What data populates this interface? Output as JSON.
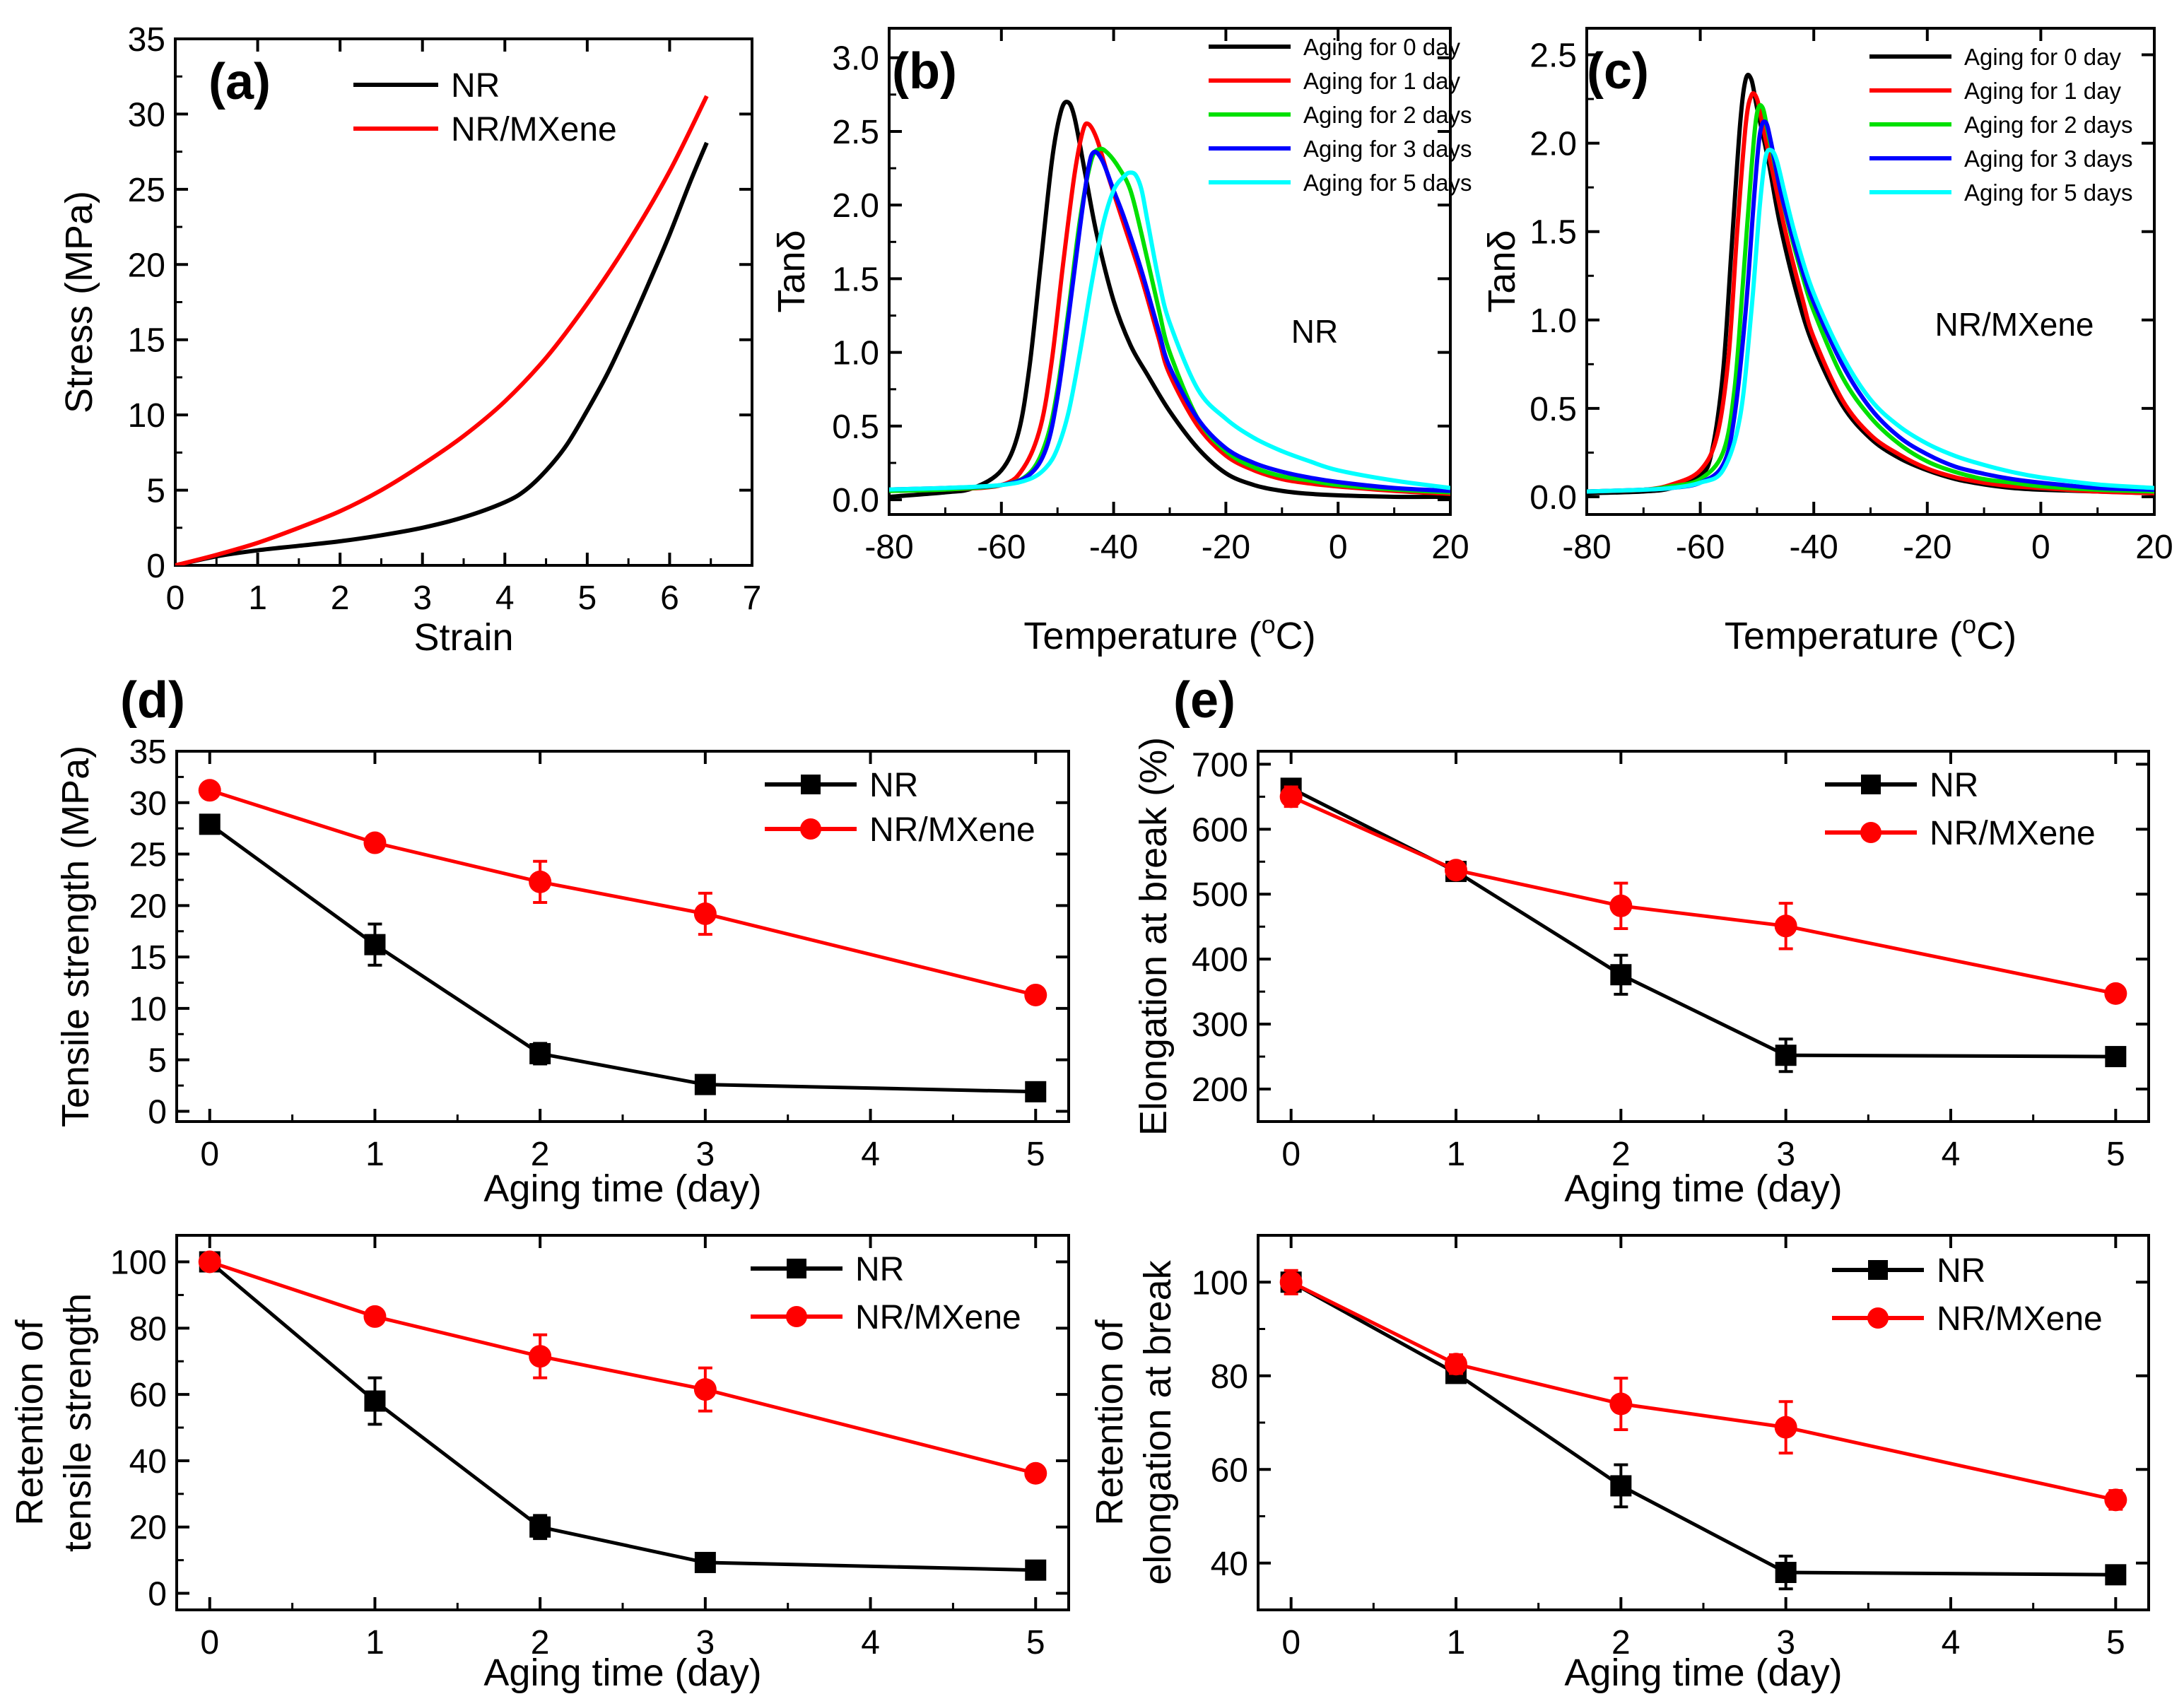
{
  "colors": {
    "black": "#000000",
    "red": "#ff0000",
    "green": "#00e000",
    "blue": "#0000ff",
    "cyan": "#00ffff"
  },
  "chart_data": [
    {
      "id": "a",
      "type": "line",
      "panel_label": "(a)",
      "xlabel": "Strain",
      "ylabel": "Stress (MPa)",
      "xlim": [
        0,
        7
      ],
      "ylim": [
        0,
        35
      ],
      "xticks": [
        0,
        1,
        2,
        3,
        4,
        5,
        6,
        7
      ],
      "yticks": [
        0,
        5,
        10,
        15,
        20,
        25,
        30,
        35
      ],
      "legend_position": "top-right",
      "series": [
        {
          "name": "NR",
          "color": "#000000",
          "x": [
            0,
            0.5,
            1,
            1.5,
            2,
            2.5,
            3,
            3.5,
            4,
            4.25,
            4.5,
            4.75,
            5,
            5.25,
            5.5,
            5.75,
            6,
            6.25,
            6.45
          ],
          "y": [
            0,
            0.6,
            1.0,
            1.3,
            1.6,
            2.0,
            2.5,
            3.2,
            4.2,
            5.0,
            6.3,
            8.0,
            10.3,
            12.8,
            15.7,
            18.8,
            22.0,
            25.5,
            28.1
          ]
        },
        {
          "name": "NR/MXene",
          "color": "#ff0000",
          "x": [
            0,
            0.5,
            1,
            1.5,
            2,
            2.5,
            3,
            3.5,
            4,
            4.5,
            5,
            5.5,
            6,
            6.45
          ],
          "y": [
            0,
            0.7,
            1.5,
            2.5,
            3.6,
            5.0,
            6.7,
            8.6,
            10.9,
            13.8,
            17.4,
            21.5,
            26.2,
            31.2
          ]
        }
      ]
    },
    {
      "id": "b",
      "type": "line",
      "panel_label": "(b)",
      "annotation": "NR",
      "xlabel": "Temperature (°C)",
      "xlabel_parts": {
        "pre": "Temperature (",
        "sup": "o",
        "post": "C)"
      },
      "ylabel": "Tanδ",
      "xlim": [
        -80,
        20
      ],
      "ylim": [
        -0.1,
        3.2
      ],
      "xticks": [
        -80,
        -60,
        -40,
        -20,
        0,
        20
      ],
      "yticks": [
        0.0,
        0.5,
        1.0,
        1.5,
        2.0,
        2.5,
        3.0
      ],
      "legend_position": "top-right",
      "series": [
        {
          "name": "Aging for 0 day",
          "color": "#000000",
          "x": [
            -80,
            -70,
            -65,
            -60,
            -57,
            -55,
            -53,
            -51,
            -49.5,
            -48.3,
            -47,
            -45,
            -43,
            -40,
            -37,
            -34,
            -30,
            -25,
            -20,
            -15,
            -10,
            -5,
            0,
            10,
            20
          ],
          "y": [
            0.02,
            0.05,
            0.08,
            0.2,
            0.45,
            0.9,
            1.6,
            2.3,
            2.62,
            2.7,
            2.6,
            2.2,
            1.8,
            1.35,
            1.05,
            0.85,
            0.6,
            0.35,
            0.18,
            0.1,
            0.06,
            0.04,
            0.03,
            0.02,
            0.02
          ]
        },
        {
          "name": "Aging for 1 day",
          "color": "#ff0000",
          "x": [
            -80,
            -70,
            -60,
            -56,
            -53,
            -51,
            -49,
            -47,
            -45.5,
            -44.5,
            -43,
            -41,
            -38,
            -35,
            -32,
            -30,
            -25,
            -20,
            -15,
            -10,
            -5,
            0,
            10,
            20
          ],
          "y": [
            0.06,
            0.07,
            0.1,
            0.22,
            0.5,
            0.95,
            1.6,
            2.2,
            2.5,
            2.55,
            2.45,
            2.2,
            1.85,
            1.5,
            1.1,
            0.85,
            0.5,
            0.3,
            0.2,
            0.14,
            0.11,
            0.09,
            0.06,
            0.04
          ]
        },
        {
          "name": "Aging for 2 days",
          "color": "#00e000",
          "x": [
            -80,
            -70,
            -60,
            -55,
            -52,
            -50,
            -48,
            -46,
            -44,
            -42.5,
            -41,
            -39,
            -37,
            -35,
            -32,
            -30,
            -25,
            -20,
            -15,
            -10,
            -5,
            0,
            10,
            20
          ],
          "y": [
            0.06,
            0.07,
            0.1,
            0.18,
            0.4,
            0.75,
            1.3,
            1.9,
            2.3,
            2.38,
            2.35,
            2.25,
            2.1,
            1.8,
            1.3,
            1.0,
            0.55,
            0.33,
            0.22,
            0.16,
            0.13,
            0.1,
            0.07,
            0.05
          ]
        },
        {
          "name": "Aging for 3 days",
          "color": "#0000ff",
          "x": [
            -80,
            -70,
            -60,
            -55,
            -52,
            -50,
            -48,
            -46,
            -44.5,
            -43.5,
            -42,
            -40,
            -38,
            -35,
            -32,
            -30,
            -25,
            -20,
            -15,
            -10,
            -5,
            0,
            10,
            20
          ],
          "y": [
            0.07,
            0.08,
            0.1,
            0.17,
            0.35,
            0.7,
            1.25,
            1.85,
            2.25,
            2.36,
            2.3,
            2.1,
            1.9,
            1.55,
            1.15,
            0.9,
            0.55,
            0.35,
            0.25,
            0.19,
            0.15,
            0.12,
            0.08,
            0.06
          ]
        },
        {
          "name": "Aging for 5 days",
          "color": "#00ffff",
          "x": [
            -80,
            -70,
            -60,
            -55,
            -52,
            -50,
            -48,
            -46,
            -44,
            -42,
            -40,
            -38,
            -37,
            -36,
            -35,
            -34,
            -32,
            -30,
            -25,
            -20,
            -15,
            -10,
            -5,
            0,
            10,
            20
          ],
          "y": [
            0.07,
            0.08,
            0.1,
            0.14,
            0.22,
            0.35,
            0.6,
            1.0,
            1.45,
            1.85,
            2.1,
            2.2,
            2.22,
            2.2,
            2.1,
            1.9,
            1.5,
            1.2,
            0.75,
            0.55,
            0.42,
            0.33,
            0.26,
            0.2,
            0.13,
            0.08
          ]
        }
      ]
    },
    {
      "id": "c",
      "type": "line",
      "panel_label": "(c)",
      "annotation": "NR/MXene",
      "xlabel": "Temperature (°C)",
      "xlabel_parts": {
        "pre": "Temperature (",
        "sup": "o",
        "post": "C)"
      },
      "ylabel": "Tanδ",
      "xlim": [
        -80,
        20
      ],
      "ylim": [
        -0.1,
        2.65
      ],
      "xticks": [
        -80,
        -60,
        -40,
        -20,
        0,
        20
      ],
      "yticks": [
        0.0,
        0.5,
        1.0,
        1.5,
        2.0,
        2.5
      ],
      "legend_position": "top-right",
      "series": [
        {
          "name": "Aging for 0 day",
          "color": "#000000",
          "x": [
            -80,
            -70,
            -65,
            -60,
            -58,
            -56,
            -54.5,
            -53,
            -52,
            -51,
            -50,
            -48,
            -46,
            -43,
            -40,
            -35,
            -30,
            -25,
            -20,
            -15,
            -10,
            -5,
            0,
            10,
            20
          ],
          "y": [
            0.02,
            0.03,
            0.05,
            0.12,
            0.25,
            0.7,
            1.4,
            2.1,
            2.36,
            2.36,
            2.2,
            1.9,
            1.55,
            1.15,
            0.85,
            0.52,
            0.33,
            0.22,
            0.15,
            0.1,
            0.07,
            0.05,
            0.04,
            0.03,
            0.02
          ]
        },
        {
          "name": "Aging for 1 day",
          "color": "#ff0000",
          "x": [
            -80,
            -70,
            -65,
            -60,
            -57,
            -55,
            -53.5,
            -52,
            -51,
            -50,
            -49,
            -47,
            -45,
            -42,
            -40,
            -35,
            -30,
            -25,
            -20,
            -15,
            -10,
            -5,
            0,
            10,
            20
          ],
          "y": [
            0.03,
            0.04,
            0.07,
            0.15,
            0.35,
            0.8,
            1.5,
            2.1,
            2.27,
            2.25,
            2.1,
            1.8,
            1.5,
            1.12,
            0.9,
            0.55,
            0.35,
            0.24,
            0.16,
            0.11,
            0.08,
            0.06,
            0.05,
            0.03,
            0.02
          ]
        },
        {
          "name": "Aging for 2 days",
          "color": "#00e000",
          "x": [
            -80,
            -70,
            -65,
            -60,
            -56,
            -54,
            -52.5,
            -51,
            -50,
            -49,
            -48,
            -46,
            -44,
            -42,
            -40,
            -35,
            -30,
            -25,
            -20,
            -15,
            -10,
            -5,
            0,
            10,
            20
          ],
          "y": [
            0.03,
            0.04,
            0.06,
            0.1,
            0.25,
            0.6,
            1.2,
            1.85,
            2.17,
            2.2,
            2.05,
            1.75,
            1.48,
            1.25,
            1.05,
            0.68,
            0.45,
            0.3,
            0.2,
            0.14,
            0.1,
            0.08,
            0.06,
            0.04,
            0.03
          ]
        },
        {
          "name": "Aging for 3 days",
          "color": "#0000ff",
          "x": [
            -80,
            -70,
            -65,
            -60,
            -56,
            -54,
            -52,
            -50.5,
            -49.5,
            -48.5,
            -47.5,
            -46,
            -44,
            -42,
            -40,
            -35,
            -30,
            -25,
            -20,
            -15,
            -10,
            -5,
            0,
            10,
            20
          ],
          "y": [
            0.03,
            0.04,
            0.05,
            0.08,
            0.18,
            0.45,
            1.05,
            1.7,
            2.05,
            2.12,
            2.0,
            1.75,
            1.5,
            1.28,
            1.1,
            0.75,
            0.5,
            0.34,
            0.24,
            0.17,
            0.13,
            0.1,
            0.08,
            0.05,
            0.04
          ]
        },
        {
          "name": "Aging for 5 days",
          "color": "#00ffff",
          "x": [
            -80,
            -70,
            -65,
            -60,
            -56,
            -53,
            -51,
            -49.5,
            -48.5,
            -47.5,
            -46.5,
            -45,
            -43,
            -40,
            -35,
            -30,
            -25,
            -20,
            -15,
            -10,
            -5,
            0,
            10,
            20
          ],
          "y": [
            0.03,
            0.04,
            0.05,
            0.08,
            0.15,
            0.45,
            1.05,
            1.65,
            1.92,
            1.96,
            1.9,
            1.7,
            1.45,
            1.15,
            0.8,
            0.55,
            0.4,
            0.3,
            0.23,
            0.18,
            0.14,
            0.11,
            0.07,
            0.05
          ]
        }
      ]
    },
    {
      "id": "d-top",
      "type": "line",
      "panel_label": "(d)",
      "xlabel": "Aging time (day)",
      "ylabel": "Tensile strength (MPa)",
      "xlim": [
        -0.2,
        5.2
      ],
      "ylim": [
        -1,
        35
      ],
      "xticks": [
        0,
        1,
        2,
        3,
        4,
        5
      ],
      "yticks": [
        0,
        5,
        10,
        15,
        20,
        25,
        30,
        35
      ],
      "legend_position": "top-right",
      "series": [
        {
          "name": "NR",
          "color": "#000000",
          "marker": "square",
          "x": [
            0,
            1,
            2,
            3,
            5
          ],
          "y": [
            27.9,
            16.2,
            5.6,
            2.6,
            1.9
          ],
          "err": [
            0.6,
            2.0,
            1.0,
            0.5,
            0.3
          ]
        },
        {
          "name": "NR/MXene",
          "color": "#ff0000",
          "marker": "circle",
          "x": [
            0,
            1,
            2,
            3,
            5
          ],
          "y": [
            31.2,
            26.1,
            22.3,
            19.2,
            11.3
          ],
          "err": [
            0.5,
            0.5,
            2.0,
            2.0,
            0.4
          ]
        }
      ]
    },
    {
      "id": "d-bottom",
      "type": "line",
      "xlabel": "Aging time (day)",
      "ylabel_lines": [
        "Retention of",
        "tensile strength"
      ],
      "xlim": [
        -0.2,
        5.2
      ],
      "ylim": [
        -5,
        108
      ],
      "xticks": [
        0,
        1,
        2,
        3,
        4,
        5
      ],
      "yticks": [
        0,
        20,
        40,
        60,
        80,
        100
      ],
      "legend_position": "top-right",
      "series": [
        {
          "name": "NR",
          "color": "#000000",
          "marker": "square",
          "x": [
            0,
            1,
            2,
            3,
            5
          ],
          "y": [
            100,
            58,
            20,
            9.3,
            7
          ],
          "err": [
            2.5,
            7,
            3.5,
            2,
            1.5
          ]
        },
        {
          "name": "NR/MXene",
          "color": "#ff0000",
          "marker": "circle",
          "x": [
            0,
            1,
            2,
            3,
            5
          ],
          "y": [
            100,
            83.5,
            71.5,
            61.5,
            36.2
          ],
          "err": [
            2,
            1.5,
            6.5,
            6.5,
            1.5
          ]
        }
      ]
    },
    {
      "id": "e-top",
      "type": "line",
      "panel_label": "(e)",
      "xlabel": "Aging time (day)",
      "ylabel": "Elongation at break (%)",
      "xlim": [
        -0.2,
        5.2
      ],
      "ylim": [
        150,
        720
      ],
      "xticks": [
        0,
        1,
        2,
        3,
        4,
        5
      ],
      "yticks": [
        200,
        300,
        400,
        500,
        600,
        700
      ],
      "legend_position": "top-right",
      "series": [
        {
          "name": "NR",
          "color": "#000000",
          "marker": "square",
          "x": [
            0,
            1,
            2,
            3,
            5
          ],
          "y": [
            663,
            535,
            376,
            252,
            250
          ],
          "err": [
            12,
            10,
            30,
            25,
            10
          ]
        },
        {
          "name": "NR/MXene",
          "color": "#ff0000",
          "marker": "circle",
          "x": [
            0,
            1,
            2,
            3,
            5
          ],
          "y": [
            650,
            537,
            482,
            451,
            347
          ],
          "err": [
            15,
            12,
            35,
            35,
            10
          ]
        }
      ]
    },
    {
      "id": "e-bottom",
      "type": "line",
      "xlabel": "Aging time (day)",
      "ylabel_lines": [
        "Retention of",
        "elongation at break"
      ],
      "xlim": [
        -0.2,
        5.2
      ],
      "ylim": [
        30,
        110
      ],
      "xticks": [
        0,
        1,
        2,
        3,
        4,
        5
      ],
      "yticks": [
        40,
        60,
        80,
        100
      ],
      "legend_position": "top-right",
      "series": [
        {
          "name": "NR",
          "color": "#000000",
          "marker": "square",
          "x": [
            0,
            1,
            2,
            3,
            5
          ],
          "y": [
            100,
            80.5,
            56.5,
            38,
            37.5
          ],
          "err": [
            2,
            1.5,
            4.5,
            3.5,
            1.5
          ]
        },
        {
          "name": "NR/MXene",
          "color": "#ff0000",
          "marker": "circle",
          "x": [
            0,
            1,
            2,
            3,
            5
          ],
          "y": [
            100,
            82.5,
            74,
            69,
            53.5
          ],
          "err": [
            2.5,
            2,
            5.5,
            5.5,
            2
          ]
        }
      ]
    }
  ]
}
